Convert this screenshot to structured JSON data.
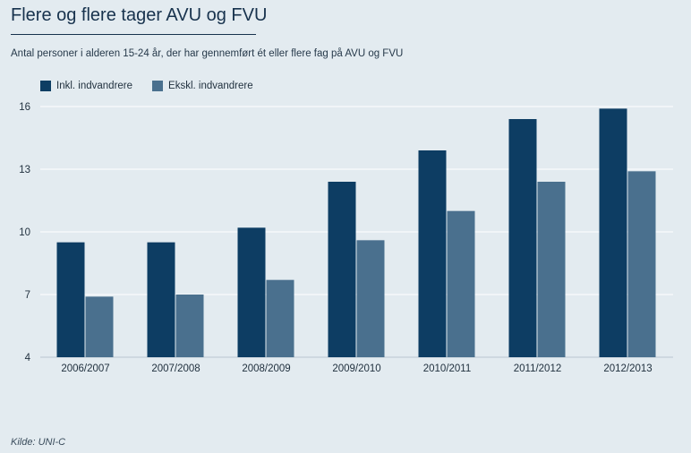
{
  "title": "Flere og flere tager AVU og FVU",
  "subtitle": "Antal personer i alderen 15-24 år, der har gennemført ét eller flere fag på AVU og FVU",
  "source": "Kilde: UNI-C",
  "colors": {
    "series1": "#0d3d63",
    "series2": "#4a708e",
    "gridline": "#ffffff",
    "background": "#e3ebf0"
  },
  "chart_data": {
    "type": "bar",
    "title": "Flere og flere tager AVU og FVU",
    "subtitle": "Antal personer i alderen 15-24 år, der har gennemført ét eller flere fag på AVU og FVU",
    "categories": [
      "2006/2007",
      "2007/2008",
      "2008/2009",
      "2009/2010",
      "2010/2011",
      "2011/2012",
      "2012/2013"
    ],
    "series": [
      {
        "name": "Inkl. indvandrere",
        "values": [
          9.5,
          9.5,
          10.2,
          12.4,
          13.9,
          15.4,
          15.9
        ]
      },
      {
        "name": "Ekskl. indvandrere",
        "values": [
          6.9,
          7.0,
          7.7,
          9.6,
          11.0,
          12.4,
          12.9
        ]
      }
    ],
    "yticks": [
      4,
      7,
      10,
      13,
      16
    ],
    "ylim": [
      4,
      16
    ],
    "grid": true,
    "legend_position": "top-left",
    "xlabel": "",
    "ylabel": ""
  }
}
